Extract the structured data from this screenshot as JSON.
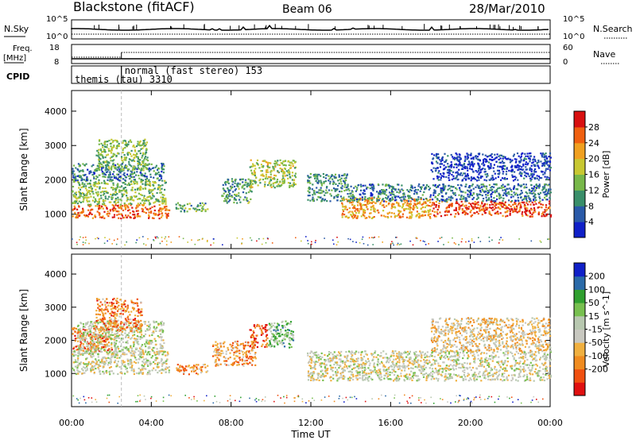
{
  "header": {
    "station": "Blackstone (fitACF)",
    "beam": "Beam 06",
    "date": "28/Mar/2010"
  },
  "top_panels": {
    "nsky_label": "N.Sky",
    "nsky_ticks": [
      "10^5",
      "10^0"
    ],
    "nsearch_label": "N.Search",
    "nsearch_ticks": [
      "10^5",
      "10^0"
    ],
    "freq_label": "Freq.",
    "freq_unit": "[MHz]",
    "freq_ticks": [
      "18",
      "8"
    ],
    "nave_label": "Nave",
    "nave_ticks": [
      "60",
      "0"
    ],
    "cpid_label": "CPID",
    "cpid_segments": [
      {
        "start": 0.0,
        "end": 2.5,
        "text": "themis (tau) 3310"
      },
      {
        "start": 2.5,
        "end": 24.0,
        "text": "normal (fast stereo) 153"
      }
    ]
  },
  "chart_data": [
    {
      "type": "heatmap",
      "title": "",
      "xlabel": "Time UT",
      "ylabel": "Slant Range [km]",
      "xlim": [
        0,
        24
      ],
      "ylim": [
        0,
        4600
      ],
      "x_ticks": [
        "00:00",
        "04:00",
        "08:00",
        "12:00",
        "16:00",
        "20:00",
        "00:00"
      ],
      "y_ticks": [
        1000,
        2000,
        3000,
        4000
      ],
      "colorbar": {
        "label": "Power [dB]",
        "ticks": [
          "4",
          "8",
          "12",
          "16",
          "20",
          "24",
          "28"
        ],
        "range": [
          0,
          30
        ]
      },
      "colors": [
        "#1020c8",
        "#2a5aa8",
        "#3a8f6a",
        "#78b84a",
        "#c8c832",
        "#f0a020",
        "#f06010",
        "#d81010"
      ],
      "regions": [
        {
          "t0": 0.0,
          "t1": 4.9,
          "r0": 900,
          "r1": 1300,
          "level": 0.8
        },
        {
          "t0": 0.0,
          "t1": 4.7,
          "r0": 1300,
          "r1": 2000,
          "level": 0.45
        },
        {
          "t0": 0.0,
          "t1": 4.6,
          "r0": 2000,
          "r1": 2500,
          "level": 0.25
        },
        {
          "t0": 1.2,
          "t1": 3.8,
          "r0": 2300,
          "r1": 3200,
          "level": 0.45
        },
        {
          "t0": 5.2,
          "t1": 6.8,
          "r0": 1100,
          "r1": 1350,
          "level": 0.4
        },
        {
          "t0": 7.5,
          "t1": 9.0,
          "r0": 1350,
          "r1": 2050,
          "level": 0.35
        },
        {
          "t0": 8.9,
          "t1": 11.2,
          "r0": 1800,
          "r1": 2600,
          "level": 0.5
        },
        {
          "t0": 11.8,
          "t1": 13.8,
          "r0": 1400,
          "r1": 2200,
          "level": 0.3
        },
        {
          "t0": 13.5,
          "t1": 18.0,
          "r0": 900,
          "r1": 1500,
          "level": 0.7
        },
        {
          "t0": 18.0,
          "t1": 24.0,
          "r0": 950,
          "r1": 1400,
          "level": 0.85
        },
        {
          "t0": 13.8,
          "t1": 24.0,
          "r0": 1400,
          "r1": 1900,
          "level": 0.25
        },
        {
          "t0": 18.0,
          "t1": 24.0,
          "r0": 2000,
          "r1": 2800,
          "level": 0.1
        }
      ]
    },
    {
      "type": "heatmap",
      "title": "",
      "xlabel": "Time UT",
      "ylabel": "Slant Range [km]",
      "xlim": [
        0,
        24
      ],
      "ylim": [
        0,
        4600
      ],
      "x_ticks": [
        "00:00",
        "04:00",
        "08:00",
        "12:00",
        "16:00",
        "20:00",
        "00:00"
      ],
      "y_ticks": [
        1000,
        2000,
        3000,
        4000
      ],
      "colorbar": {
        "label": "Velocity [m s^-1]",
        "ticks": [
          "200",
          "100",
          "50",
          "15",
          "-15",
          "-50",
          "-100",
          "-200"
        ],
        "range": [
          -250,
          250
        ]
      },
      "colors": [
        "#e01010",
        "#f05010",
        "#f08c20",
        "#f0b040",
        "#c8c8c0",
        "#b8c8b0",
        "#78c050",
        "#30a030",
        "#2a6aa8",
        "#1020c8"
      ],
      "regions": [
        {
          "t0": 0.0,
          "t1": 4.9,
          "r0": 1000,
          "r1": 1700,
          "level": 0.48
        },
        {
          "t0": 0.0,
          "t1": 2.0,
          "r0": 1700,
          "r1": 2400,
          "level": 0.2
        },
        {
          "t0": 0.2,
          "t1": 4.6,
          "r0": 1600,
          "r1": 2600,
          "level": 0.52
        },
        {
          "t0": 1.2,
          "t1": 3.5,
          "r0": 2300,
          "r1": 3300,
          "level": 0.25
        },
        {
          "t0": 5.2,
          "t1": 6.8,
          "r0": 1000,
          "r1": 1300,
          "level": 0.25
        },
        {
          "t0": 7.0,
          "t1": 9.2,
          "r0": 1250,
          "r1": 2000,
          "level": 0.3
        },
        {
          "t0": 8.9,
          "t1": 9.8,
          "r0": 1800,
          "r1": 2500,
          "level": 0.15
        },
        {
          "t0": 9.8,
          "t1": 11.1,
          "r0": 1800,
          "r1": 2600,
          "level": 0.65
        },
        {
          "t0": 11.8,
          "t1": 24.0,
          "r0": 800,
          "r1": 1700,
          "level": 0.48
        },
        {
          "t0": 18.0,
          "t1": 24.0,
          "r0": 1700,
          "r1": 2700,
          "level": 0.4
        }
      ]
    }
  ]
}
